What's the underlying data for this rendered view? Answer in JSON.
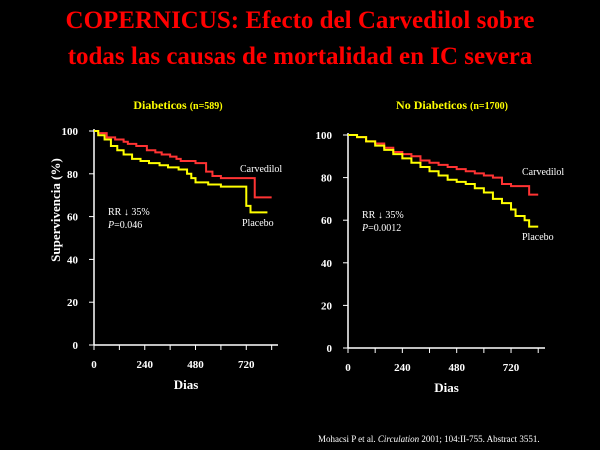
{
  "title": {
    "line1": "COPERNICUS: Efecto del Carvedilol sobre",
    "line2": "todas las causas de mortalidad en IC severa"
  },
  "colors": {
    "background": "#000000",
    "title": "#ff0000",
    "panel_heading": "#ffff00",
    "carvedilol": "#ff3333",
    "placebo": "#ffff00",
    "axis": "#ffffff"
  },
  "ylabel": "Supervivencia (%)",
  "citation": {
    "prefix": "Mohacsi P et al. ",
    "journal": "Circulation",
    "suffix": " 2001; 104:II-755. Abstract 3551."
  },
  "chart_data": [
    {
      "type": "line",
      "title": "Diabeticos",
      "subtitle": "(n=589)",
      "xlabel": "Dias",
      "ylabel": "Supervivencia (%)",
      "xlim": [
        0,
        870
      ],
      "ylim": [
        0,
        100
      ],
      "x_ticks": [
        0,
        240,
        480,
        720
      ],
      "y_ticks": [
        0,
        20,
        40,
        60,
        80,
        100
      ],
      "annotation": {
        "rr_label": "RR",
        "rr_value": "35%",
        "p_label": "P",
        "p_value": "=0.046"
      },
      "series": [
        {
          "name": "Carvedilol",
          "color": "#ff3333",
          "x": [
            0,
            20,
            60,
            100,
            140,
            160,
            200,
            250,
            290,
            320,
            360,
            390,
            410,
            440,
            480,
            530,
            560,
            600,
            650,
            700,
            740,
            760,
            790,
            840
          ],
          "y": [
            100,
            99,
            97,
            96,
            95,
            94,
            93,
            91,
            90,
            89,
            88,
            87,
            86,
            86,
            85,
            81,
            79,
            78,
            78,
            78,
            78,
            69,
            69,
            69
          ]
        },
        {
          "name": "Placebo",
          "color": "#ffff00",
          "x": [
            0,
            20,
            50,
            80,
            110,
            140,
            180,
            220,
            260,
            310,
            350,
            400,
            440,
            460,
            480,
            540,
            600,
            640,
            680,
            700,
            720,
            740,
            790,
            820
          ],
          "y": [
            100,
            98,
            96,
            93,
            91,
            89,
            87,
            86,
            85,
            84,
            83,
            82,
            80,
            78,
            76,
            75,
            74,
            74,
            74,
            74,
            65,
            62,
            62,
            62
          ]
        }
      ]
    },
    {
      "type": "line",
      "title": "No Diabeticos",
      "subtitle": "(n=1700)",
      "xlabel": "Dias",
      "ylabel": "",
      "xlim": [
        0,
        870
      ],
      "ylim": [
        0,
        100
      ],
      "x_ticks": [
        0,
        240,
        480,
        720
      ],
      "y_ticks": [
        0,
        20,
        40,
        60,
        80,
        100
      ],
      "annotation": {
        "rr_label": "RR",
        "rr_value": "35%",
        "p_label": "P",
        "p_value": "=0.0012"
      },
      "series": [
        {
          "name": "Carvedilol",
          "color": "#ff3333",
          "x": [
            0,
            40,
            80,
            120,
            160,
            200,
            240,
            280,
            320,
            360,
            400,
            440,
            480,
            520,
            560,
            600,
            640,
            680,
            720,
            760,
            800,
            840
          ],
          "y": [
            100,
            99,
            97,
            96,
            94,
            92,
            91,
            90,
            88,
            87,
            86,
            85,
            84,
            83,
            82,
            81,
            80,
            77,
            76,
            76,
            72,
            72
          ]
        },
        {
          "name": "Placebo",
          "color": "#ffff00",
          "x": [
            0,
            40,
            80,
            120,
            160,
            200,
            240,
            280,
            320,
            360,
            400,
            440,
            480,
            520,
            560,
            600,
            640,
            680,
            720,
            740,
            780,
            800,
            840
          ],
          "y": [
            100,
            99,
            97,
            95,
            93,
            91,
            89,
            87,
            85,
            83,
            81,
            79,
            78,
            77,
            75,
            73,
            70,
            68,
            65,
            62,
            60,
            57,
            57
          ]
        }
      ]
    }
  ]
}
